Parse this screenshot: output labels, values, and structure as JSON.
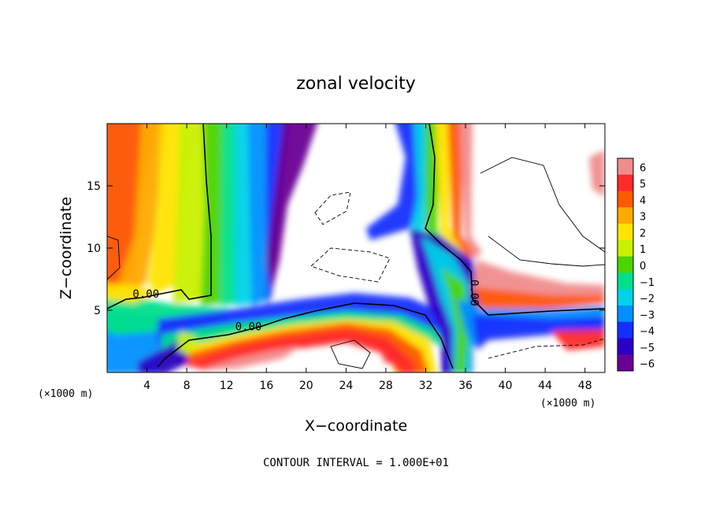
{
  "chart_data": {
    "type": "heatmap",
    "title": "zonal velocity",
    "xlabel": "X−coordinate",
    "ylabel": "Z−coordinate",
    "x_unit_left": "(×1000 m)",
    "x_unit_right": "(×1000 m)",
    "footer": "CONTOUR INTERVAL = 1.000E+01",
    "xlim": [
      0,
      50
    ],
    "ylim": [
      0,
      20
    ],
    "x_ticks": [
      4,
      8,
      12,
      16,
      20,
      24,
      28,
      32,
      36,
      40,
      44,
      48
    ],
    "x_tick_labels": [
      "4",
      "8",
      "12",
      "16",
      "20",
      "24",
      "28",
      "32",
      "36",
      "40",
      "44",
      "48"
    ],
    "y_ticks": [
      5,
      10,
      15
    ],
    "y_tick_labels": [
      "5",
      "10",
      "15"
    ],
    "colorbar": {
      "levels": [
        6,
        5,
        4,
        3,
        2,
        1,
        0,
        -1,
        -2,
        -3,
        -4,
        -5,
        -6
      ],
      "labels": [
        "6",
        "5",
        "4",
        "3",
        "2",
        "1",
        "0",
        "−1",
        "−2",
        "−3",
        "−4",
        "−5",
        "−6"
      ],
      "colors": [
        "#f08c8c",
        "#ff2a2a",
        "#ff5a00",
        "#ffaa00",
        "#ffe400",
        "#c8f000",
        "#4cd400",
        "#00e08a",
        "#00d2e8",
        "#0090ff",
        "#1430ff",
        "#2a00c8",
        "#6a0094"
      ]
    },
    "contour_labels": [
      {
        "text": "0.00",
        "x": 3.9,
        "y": 6.0
      },
      {
        "text": "0.00",
        "x": 14.2,
        "y": 3.4
      },
      {
        "text": "0.00",
        "x": 36.5,
        "y": 6.4
      }
    ],
    "grid": false,
    "legend": "colorbar-right"
  }
}
